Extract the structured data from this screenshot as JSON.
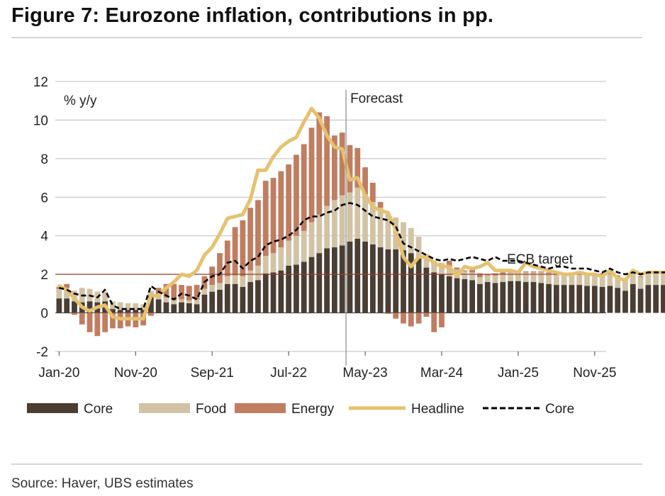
{
  "figure_title": "Figure 7: Eurozone inflation, contributions in pp.",
  "source": "Source: Haver, UBS estimates",
  "colors": {
    "core_bar": "#4a3d33",
    "food_bar": "#d2c3a6",
    "energy_bar": "#c07d60",
    "headline_line": "#e6c170",
    "core_line": "#000000",
    "ecb_target_line": "#a33a2a",
    "gridline": "#bdbdbd",
    "forecast_line": "#8a8a8a"
  },
  "chart_data": {
    "type": "bar",
    "subtype": "stacked bar with line overlays",
    "title": "",
    "ylabel": "% y/y",
    "xlabel": "",
    "ylim": [
      -2,
      12
    ],
    "yticks": [
      12,
      10,
      8,
      6,
      4,
      2,
      0,
      -2
    ],
    "grid": true,
    "x_start": "Jan-20",
    "x_end": "Dec-25",
    "xtick_labels": [
      "Jan-20",
      "Nov-20",
      "Sep-21",
      "Jul-22",
      "May-23",
      "Mar-24",
      "Jan-25",
      "Nov-25"
    ],
    "reference_line": {
      "label": "ECB target",
      "value": 2
    },
    "forecast_marker": {
      "label": "Forecast",
      "month": "Feb-23"
    },
    "legend": {
      "position": "bottom",
      "items": [
        {
          "label": "Core",
          "type": "bar",
          "color_key": "core_bar"
        },
        {
          "label": "Food",
          "type": "bar",
          "color_key": "food_bar"
        },
        {
          "label": "Energy",
          "type": "bar",
          "color_key": "energy_bar"
        },
        {
          "label": "Headline",
          "type": "line",
          "color_key": "headline_line"
        },
        {
          "label": "Core",
          "type": "dashed-line",
          "color_key": "core_line"
        }
      ]
    },
    "series": [
      {
        "name": "Core",
        "kind": "bar",
        "values": [
          0.75,
          0.75,
          0.6,
          0.55,
          0.6,
          0.55,
          0.6,
          0.2,
          0.15,
          0.15,
          0.15,
          0.15,
          0.85,
          0.7,
          0.55,
          0.45,
          0.55,
          0.5,
          0.45,
          0.95,
          1.1,
          1.2,
          1.5,
          1.5,
          1.35,
          1.6,
          1.7,
          2.05,
          2.1,
          2.2,
          2.45,
          2.5,
          2.65,
          2.9,
          3.1,
          3.35,
          3.4,
          3.5,
          3.7,
          3.85,
          3.7,
          3.55,
          3.4,
          3.3,
          3.3,
          3.25,
          3.1,
          2.85,
          2.35,
          2.1,
          2.0,
          1.9,
          1.8,
          1.75,
          1.7,
          1.5,
          1.6,
          1.55,
          1.6,
          1.65,
          1.65,
          1.6,
          1.6,
          1.55,
          1.5,
          1.45,
          1.45,
          1.45,
          1.45,
          1.4,
          1.4,
          1.35,
          1.4,
          1.3,
          1.15,
          1.5,
          1.25,
          1.45,
          1.45,
          1.45,
          1.45,
          1.45,
          1.45,
          1.45
        ]
      },
      {
        "name": "Food",
        "kind": "bar",
        "values": [
          0.5,
          0.55,
          0.55,
          0.75,
          0.65,
          0.55,
          0.5,
          0.4,
          0.4,
          0.35,
          0.35,
          0.3,
          0.3,
          0.25,
          0.25,
          0.2,
          0.15,
          0.15,
          0.25,
          0.3,
          0.35,
          0.35,
          0.4,
          0.45,
          0.55,
          0.6,
          0.75,
          0.9,
          1.0,
          1.2,
          1.3,
          1.5,
          1.6,
          1.8,
          2.0,
          2.2,
          2.45,
          2.6,
          2.55,
          2.65,
          2.45,
          2.2,
          2.05,
          1.85,
          1.65,
          1.45,
          1.3,
          1.1,
          0.7,
          0.6,
          0.6,
          0.5,
          0.45,
          0.4,
          0.4,
          0.35,
          0.35,
          0.4,
          0.4,
          0.45,
          0.45,
          0.5,
          0.5,
          0.55,
          0.55,
          0.55,
          0.55,
          0.6,
          0.6,
          0.6,
          0.6,
          0.65,
          0.6,
          0.6,
          0.6,
          0.6,
          0.6,
          0.6,
          0.65,
          0.65,
          0.65,
          0.65,
          0.65,
          0.7
        ]
      },
      {
        "name": "Energy",
        "kind": "bar",
        "values": [
          0.1,
          0.2,
          -0.1,
          -0.6,
          -1.0,
          -1.2,
          -1.0,
          -0.8,
          -0.8,
          -0.7,
          -0.75,
          -0.65,
          -0.15,
          0.35,
          0.7,
          0.85,
          0.75,
          0.75,
          0.75,
          0.65,
          0.95,
          1.55,
          1.85,
          2.5,
          2.9,
          3.25,
          3.4,
          3.9,
          3.9,
          3.95,
          3.95,
          4.2,
          4.5,
          4.9,
          5.3,
          4.65,
          3.35,
          3.25,
          2.45,
          2.05,
          1.4,
          1.0,
          0.3,
          -0.05,
          -0.3,
          -0.55,
          -0.7,
          -0.55,
          -0.2,
          -1.0,
          -0.75,
          0.3,
          0.1,
          0.05,
          0.25,
          0.2,
          0.05,
          0.1,
          0.1,
          0.1,
          0.05,
          0.05,
          0.05,
          0.05,
          0.05,
          0.05,
          0.05,
          0.05,
          0.05,
          0.05,
          0.05,
          0.05,
          0.05,
          0.05,
          0.05,
          0.05,
          0.05,
          0.05,
          0.05,
          0.05,
          0.05,
          0.05,
          0.05,
          0.05
        ]
      },
      {
        "name": "Headline",
        "kind": "line",
        "values": [
          1.4,
          1.2,
          0.75,
          0.3,
          0.1,
          0.3,
          0.4,
          -0.2,
          -0.3,
          -0.3,
          -0.3,
          -0.3,
          0.9,
          0.9,
          1.3,
          1.6,
          2.0,
          1.9,
          2.2,
          3.0,
          3.4,
          4.1,
          4.9,
          5.0,
          5.1,
          5.9,
          7.4,
          7.4,
          8.1,
          8.6,
          8.9,
          9.1,
          9.9,
          10.6,
          10.1,
          9.2,
          8.6,
          8.5,
          6.9,
          7.0,
          6.1,
          5.5,
          5.3,
          5.2,
          4.3,
          2.9,
          2.4,
          2.9,
          2.9,
          2.6,
          2.4,
          2.4,
          1.9,
          2.4,
          2.3,
          2.4,
          2.6,
          2.2,
          2.2,
          2.2,
          2.1,
          2.6,
          2.4,
          2.3,
          2.2,
          2.1,
          2.0,
          2.0,
          2.1,
          2.0,
          2.0,
          1.9,
          2.2,
          1.8,
          1.7,
          2.2,
          2.0,
          2.1,
          2.1,
          2.1,
          2.1,
          2.1,
          2.1,
          2.1
        ]
      },
      {
        "name": "Core",
        "kind": "dashed-line",
        "values": [
          1.3,
          1.2,
          1.0,
          0.9,
          0.9,
          0.8,
          1.2,
          0.4,
          0.2,
          0.2,
          0.2,
          0.2,
          1.4,
          1.1,
          0.9,
          0.7,
          1.0,
          0.9,
          0.7,
          1.6,
          1.9,
          2.0,
          2.6,
          2.7,
          2.3,
          2.7,
          2.9,
          3.5,
          3.7,
          3.8,
          4.0,
          4.3,
          4.8,
          5.0,
          5.0,
          5.2,
          5.3,
          5.6,
          5.7,
          5.6,
          5.3,
          5.0,
          4.9,
          4.8,
          4.5,
          3.6,
          3.4,
          3.2,
          3.0,
          2.8,
          2.7,
          2.8,
          2.7,
          2.8,
          2.9,
          2.8,
          2.7,
          2.9,
          2.7,
          2.7,
          2.7,
          2.6,
          2.5,
          2.4,
          2.3,
          2.4,
          2.4,
          2.3,
          2.3,
          2.3,
          2.2,
          2.1,
          2.3,
          2.1,
          2.0,
          2.1,
          2.0,
          2.1,
          2.1,
          2.1,
          2.1,
          2.1,
          2.1,
          2.1
        ]
      }
    ]
  }
}
